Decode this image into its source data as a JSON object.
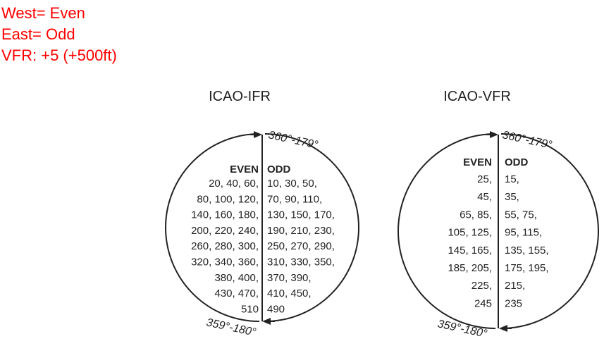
{
  "notes": {
    "west": "West= Even",
    "east": "East= Odd",
    "vfr": "VFR: +5 (+500ft)"
  },
  "colors": {
    "notes": "#ff0000",
    "ink": "#222222"
  },
  "ifr": {
    "title": "ICAO-IFR",
    "top_label": "360°-179°",
    "bottom_label": "359°-180°",
    "even_header": "EVEN",
    "odd_header": "ODD",
    "even_rows": [
      "20, 40, 60,",
      "80, 100, 120,",
      "140, 160, 180,",
      "200, 220, 240,",
      "260, 280, 300,",
      "320, 340, 360,",
      "380, 400,",
      "430, 470,",
      "510"
    ],
    "odd_rows": [
      "10, 30, 50,",
      "70, 90, 110,",
      "130, 150, 170,",
      "190, 210, 230,",
      "250, 270, 290,",
      "310, 330, 350,",
      "370, 390,",
      "410, 450,",
      "490"
    ]
  },
  "vfr": {
    "title": "ICAO-VFR",
    "top_label": "360°-179°",
    "bottom_label": "359°-180°",
    "even_header": "EVEN",
    "odd_header": "ODD",
    "even_rows": [
      "25,",
      "45,",
      "65, 85,",
      "105, 125,",
      "145, 165,",
      "185, 205,",
      "225,",
      "245"
    ],
    "odd_rows": [
      "15,",
      "35,",
      "55, 75,",
      "95, 115,",
      "135, 155,",
      "175, 195,",
      "215,",
      "235"
    ]
  }
}
